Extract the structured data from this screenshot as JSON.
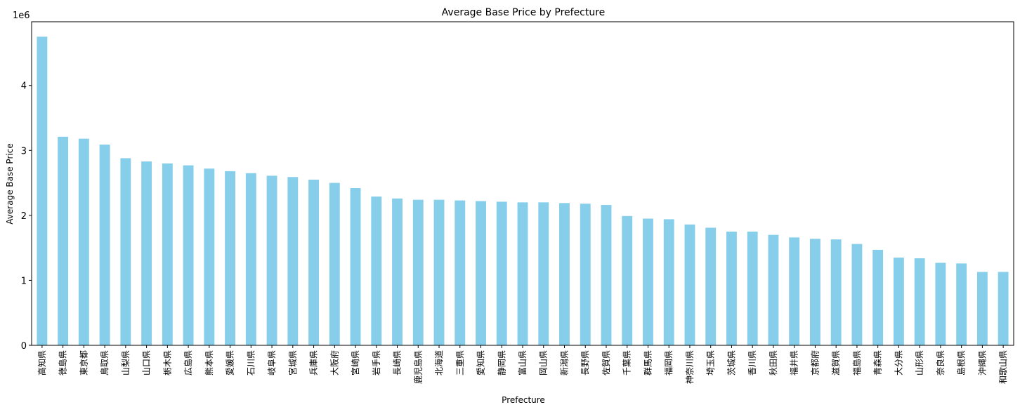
{
  "chart_data": {
    "type": "bar",
    "title": "Average Base Price by Prefecture",
    "xlabel": "Prefecture",
    "ylabel": "Average Base Price",
    "y_offset_label": "1e6",
    "y_tick_values": [
      0,
      1,
      2,
      3,
      4
    ],
    "y_tick_labels": [
      "0",
      "1",
      "2",
      "3",
      "4"
    ],
    "ylim": [
      0,
      4.98
    ],
    "bar_color": "#87ceeb",
    "grid": false,
    "categories": [
      "高知県",
      "徳島県",
      "東京都",
      "鳥取県",
      "山梨県",
      "山口県",
      "栃木県",
      "広島県",
      "熊本県",
      "愛媛県",
      "石川県",
      "岐阜県",
      "宮城県",
      "兵庫県",
      "大阪府",
      "宮崎県",
      "岩手県",
      "長崎県",
      "鹿児島県",
      "北海道",
      "三重県",
      "愛知県",
      "静岡県",
      "富山県",
      "岡山県",
      "新潟県",
      "長野県",
      "佐賀県",
      "千葉県",
      "群馬県",
      "福岡県",
      "神奈川県",
      "埼玉県",
      "茨城県",
      "香川県",
      "秋田県",
      "福井県",
      "京都府",
      "滋賀県",
      "福島県",
      "青森県",
      "大分県",
      "山形県",
      "奈良県",
      "島根県",
      "沖縄県",
      "和歌山県"
    ],
    "values": [
      4.75,
      3.21,
      3.18,
      3.09,
      2.88,
      2.83,
      2.8,
      2.77,
      2.72,
      2.68,
      2.65,
      2.61,
      2.59,
      2.55,
      2.5,
      2.42,
      2.29,
      2.26,
      2.24,
      2.24,
      2.23,
      2.22,
      2.21,
      2.2,
      2.2,
      2.19,
      2.18,
      2.16,
      1.99,
      1.95,
      1.94,
      1.86,
      1.81,
      1.75,
      1.75,
      1.7,
      1.66,
      1.64,
      1.63,
      1.56,
      1.47,
      1.35,
      1.34,
      1.27,
      1.26,
      1.13,
      1.13
    ]
  }
}
